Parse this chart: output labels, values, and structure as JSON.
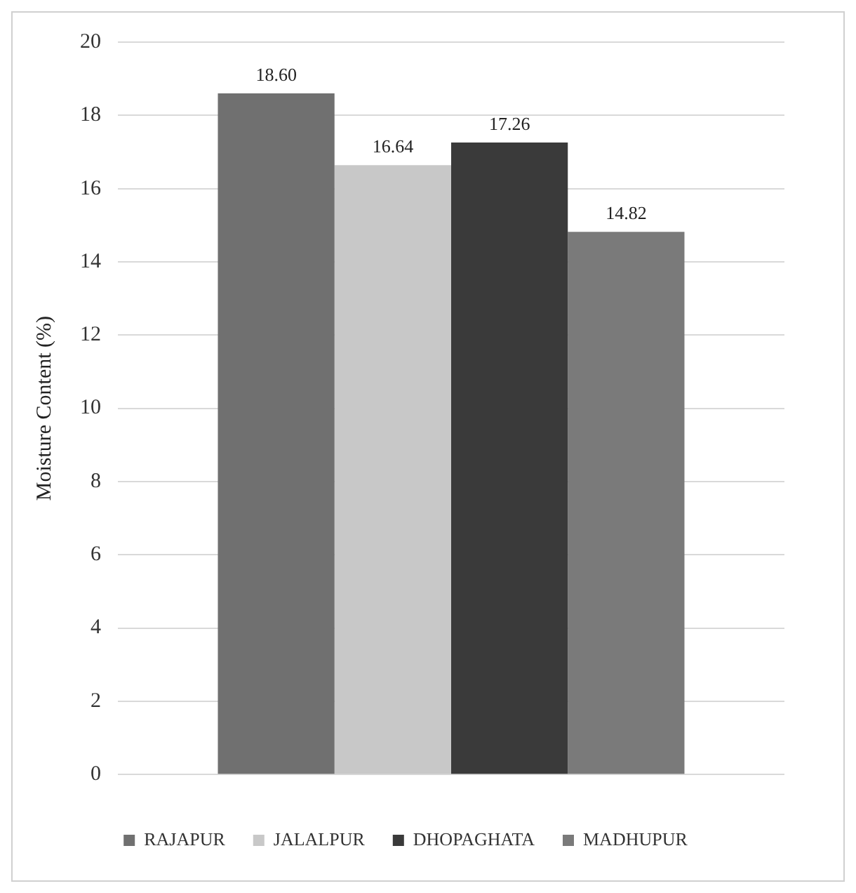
{
  "chart_data": {
    "type": "bar",
    "ylabel": "Moisture Content (%)",
    "categories": [
      null
    ],
    "series": [
      {
        "name": "RAJAPUR",
        "color": "#707070",
        "values": [
          18.6
        ],
        "value_labels": [
          "18.60"
        ]
      },
      {
        "name": "JALALPUR",
        "color": "#c8c8c8",
        "values": [
          16.64
        ],
        "value_labels": [
          "16.64"
        ]
      },
      {
        "name": "DHOPAGHATA",
        "color": "#3a3a3a",
        "values": [
          17.26
        ],
        "value_labels": [
          "17.26"
        ]
      },
      {
        "name": "MADHUPUR",
        "color": "#7a7a7a",
        "values": [
          14.82
        ],
        "value_labels": [
          "14.82"
        ]
      }
    ],
    "ylim": [
      0,
      20
    ],
    "yticks": [
      0,
      2,
      4,
      6,
      8,
      10,
      12,
      14,
      16,
      18,
      20
    ],
    "grid": "y",
    "legend": "bottom"
  }
}
